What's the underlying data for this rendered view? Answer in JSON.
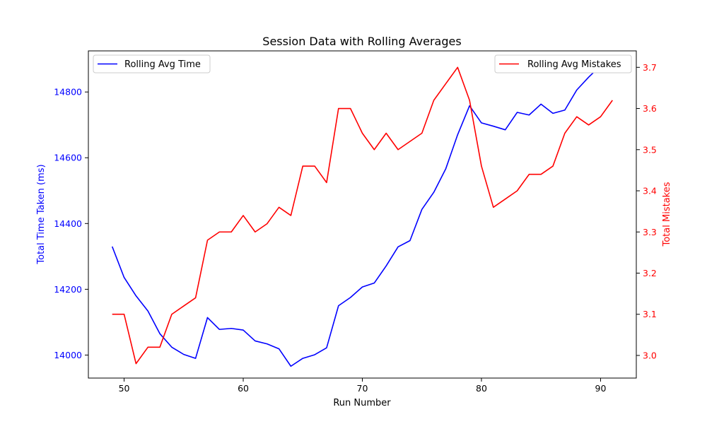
{
  "chart_data": {
    "type": "line",
    "title": "Session Data with Rolling Averages",
    "xlabel": "Run Number",
    "ylabel_left": "Total Time Taken (ms)",
    "ylabel_right": "Total Mistakes",
    "xlim": [
      47,
      93
    ],
    "ylim_left": [
      13930,
      14925
    ],
    "ylim_right": [
      2.945,
      3.74
    ],
    "x_ticks": [
      50,
      60,
      70,
      80,
      90
    ],
    "y_ticks_left": [
      14000,
      14200,
      14400,
      14600,
      14800
    ],
    "y_ticks_right": [
      3.0,
      3.1,
      3.2,
      3.3,
      3.4,
      3.5,
      3.6,
      3.7
    ],
    "y_ticks_right_labels": [
      "3.0",
      "3.1",
      "3.2",
      "3.3",
      "3.4",
      "3.5",
      "3.6",
      "3.7"
    ],
    "grid": false,
    "colors": {
      "left_axis": "#0000ff",
      "right_axis": "#ff0000",
      "frame": "#000000"
    },
    "series": [
      {
        "name": "Rolling Avg Time",
        "axis": "left",
        "color": "#0000ff",
        "legend_position": "top-left",
        "x": [
          49,
          50,
          51,
          52,
          53,
          54,
          55,
          56,
          57,
          58,
          59,
          60,
          61,
          62,
          63,
          64,
          65,
          66,
          67,
          68,
          69,
          70,
          71,
          72,
          73,
          74,
          75,
          76,
          77,
          78,
          79,
          80,
          81,
          82,
          83,
          84,
          85,
          86,
          87,
          88,
          89,
          90,
          91
        ],
        "values": [
          14330,
          14236,
          14180,
          14134,
          14065,
          14024,
          14002,
          13990,
          14114,
          14078,
          14081,
          14076,
          14043,
          14034,
          14019,
          13966,
          13990,
          14001,
          14022,
          14150,
          14175,
          14207,
          14219,
          14271,
          14329,
          14348,
          14443,
          14495,
          14566,
          14670,
          14758,
          14706,
          14696,
          14685,
          14738,
          14730,
          14763,
          14735,
          14745,
          14806,
          14845,
          14880,
          14900
        ]
      },
      {
        "name": "Rolling Avg Mistakes",
        "axis": "right",
        "color": "#ff0000",
        "legend_position": "top-right",
        "x": [
          49,
          50,
          51,
          52,
          53,
          54,
          55,
          56,
          57,
          58,
          59,
          60,
          61,
          62,
          63,
          64,
          65,
          66,
          67,
          68,
          69,
          70,
          71,
          72,
          73,
          74,
          75,
          76,
          77,
          78,
          79,
          80,
          81,
          82,
          83,
          84,
          85,
          86,
          87,
          88,
          89,
          90,
          91
        ],
        "values": [
          3.1,
          3.1,
          2.98,
          3.02,
          3.02,
          3.1,
          3.12,
          3.14,
          3.28,
          3.3,
          3.3,
          3.34,
          3.3,
          3.32,
          3.36,
          3.34,
          3.46,
          3.46,
          3.42,
          3.6,
          3.6,
          3.54,
          3.5,
          3.54,
          3.5,
          3.52,
          3.54,
          3.62,
          3.66,
          3.7,
          3.62,
          3.46,
          3.36,
          3.38,
          3.4,
          3.44,
          3.44,
          3.46,
          3.54,
          3.58,
          3.56,
          3.58,
          3.62
        ]
      }
    ]
  }
}
